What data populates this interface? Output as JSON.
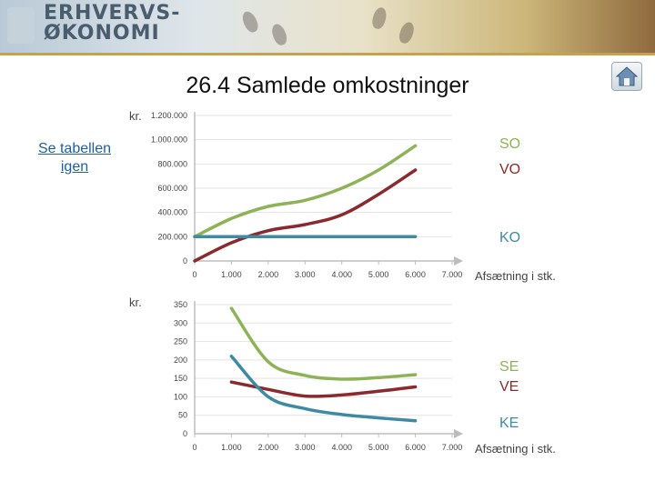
{
  "header": {
    "logo_line1": "ERHVERVS-",
    "logo_line2": "ØKONOMI"
  },
  "title": "26.4 Samlede omkostninger",
  "side_link": "Se tabellen igen",
  "colors": {
    "so": "#8db356",
    "vo": "#8b2a2e",
    "ko": "#3f8aa3",
    "axis": "#bdbdbd",
    "link": "#1f5f9e"
  },
  "icons": {
    "home": "home-icon"
  },
  "chart_data": [
    {
      "type": "line",
      "unit_label": "kr.",
      "xlabel": "Afsætning i stk.",
      "x_ticks": [
        "0",
        "1.000",
        "2.000",
        "3.000",
        "4.000",
        "5.000",
        "6.000",
        "7.000"
      ],
      "y_ticks": [
        "0",
        "200.000",
        "400.000",
        "600.000",
        "800.000",
        "1.000.000",
        "1.200.000"
      ],
      "xlim": [
        0,
        7000
      ],
      "ylim": [
        0,
        1200000
      ],
      "grid": true,
      "series": [
        {
          "name": "SO",
          "color": "#8db356",
          "x": [
            0,
            1000,
            2000,
            3000,
            4000,
            5000,
            6000
          ],
          "y": [
            200000,
            350000,
            450000,
            500000,
            600000,
            750000,
            950000
          ]
        },
        {
          "name": "VO",
          "color": "#8b2a2e",
          "x": [
            0,
            1000,
            2000,
            3000,
            4000,
            5000,
            6000
          ],
          "y": [
            0,
            150000,
            250000,
            300000,
            380000,
            550000,
            750000
          ]
        },
        {
          "name": "KO",
          "color": "#3f8aa3",
          "x": [
            0,
            1000,
            2000,
            3000,
            4000,
            5000,
            6000
          ],
          "y": [
            200000,
            200000,
            200000,
            200000,
            200000,
            200000,
            200000
          ]
        }
      ]
    },
    {
      "type": "line",
      "unit_label": "kr.",
      "xlabel": "Afsætning i stk.",
      "x_ticks": [
        "0",
        "1.000",
        "2.000",
        "3.000",
        "4.000",
        "5.000",
        "6.000",
        "7.000"
      ],
      "y_ticks": [
        "0",
        "50",
        "100",
        "150",
        "200",
        "250",
        "300",
        "350"
      ],
      "xlim": [
        0,
        7000
      ],
      "ylim": [
        0,
        350
      ],
      "grid": true,
      "series": [
        {
          "name": "SE",
          "color": "#8db356",
          "x": [
            1000,
            2000,
            3000,
            4000,
            5000,
            6000
          ],
          "y": [
            340,
            195,
            158,
            148,
            152,
            160
          ]
        },
        {
          "name": "VE",
          "color": "#8b2a2e",
          "x": [
            1000,
            2000,
            3000,
            4000,
            5000,
            6000
          ],
          "y": [
            140,
            120,
            102,
            105,
            115,
            127
          ]
        },
        {
          "name": "KE",
          "color": "#3f8aa3",
          "x": [
            1000,
            2000,
            3000,
            4000,
            5000,
            6000
          ],
          "y": [
            210,
            100,
            68,
            52,
            43,
            35
          ]
        }
      ]
    }
  ]
}
